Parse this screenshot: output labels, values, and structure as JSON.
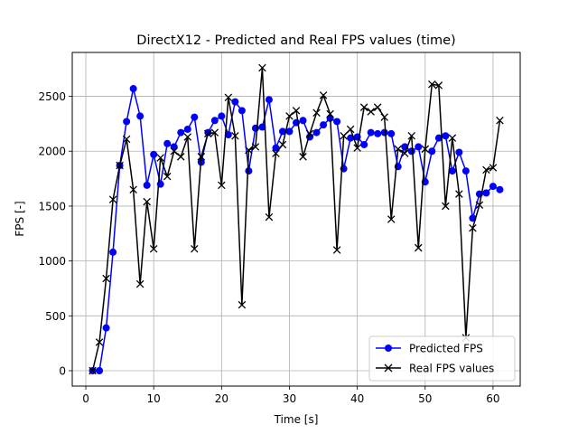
{
  "chart_data": {
    "type": "line",
    "title": "DirectX12 - Predicted and Real FPS values (time)",
    "xlabel": "Time [s]",
    "ylabel": "FPS [-]",
    "xlim": [
      -2,
      64
    ],
    "ylim": [
      -140,
      2900
    ],
    "xticks": [
      0,
      10,
      20,
      30,
      40,
      50,
      60
    ],
    "yticks": [
      0,
      500,
      1000,
      1500,
      2000,
      2500
    ],
    "grid": true,
    "legend_position": "bottom-right",
    "x": [
      1,
      2,
      3,
      4,
      5,
      6,
      7,
      8,
      9,
      10,
      11,
      12,
      13,
      14,
      15,
      16,
      17,
      18,
      19,
      20,
      21,
      22,
      23,
      24,
      25,
      26,
      27,
      28,
      29,
      30,
      31,
      32,
      33,
      34,
      35,
      36,
      37,
      38,
      39,
      40,
      41,
      42,
      43,
      44,
      45,
      46,
      47,
      48,
      49,
      50,
      51,
      52,
      53,
      54,
      55,
      56,
      57,
      58,
      59,
      60,
      61
    ],
    "series": [
      {
        "name": "Predicted FPS",
        "color": "#0000ff",
        "marker": "o",
        "values": [
          0,
          0,
          390,
          1080,
          1870,
          2270,
          2570,
          2320,
          1690,
          1970,
          1700,
          2070,
          2040,
          2170,
          2200,
          2310,
          1900,
          2170,
          2280,
          2320,
          2150,
          2450,
          2370,
          1820,
          2210,
          2220,
          2470,
          2030,
          2180,
          2180,
          2260,
          2280,
          2130,
          2170,
          2240,
          2300,
          2270,
          1840,
          2120,
          2130,
          2060,
          2170,
          2160,
          2170,
          2160,
          1860,
          2040,
          2000,
          2040,
          1720,
          2000,
          2120,
          2140,
          1820,
          1990,
          1820,
          1390,
          1610,
          1620,
          1680,
          1650
        ]
      },
      {
        "name": "Real FPS values",
        "color": "#000000",
        "marker": "x",
        "values": [
          0,
          260,
          840,
          1560,
          1870,
          2110,
          1650,
          790,
          1540,
          1110,
          1940,
          1770,
          2000,
          1950,
          2130,
          1110,
          1950,
          2160,
          2170,
          1690,
          2490,
          2140,
          600,
          2010,
          2040,
          2760,
          1400,
          1980,
          2060,
          2320,
          2370,
          1950,
          2160,
          2350,
          2510,
          2340,
          1100,
          2140,
          2200,
          2030,
          2400,
          2360,
          2400,
          2310,
          1380,
          2020,
          1980,
          2140,
          1120,
          2020,
          2610,
          2600,
          1500,
          2120,
          1610,
          300,
          1300,
          1510,
          1830,
          1850,
          2280
        ]
      }
    ]
  }
}
